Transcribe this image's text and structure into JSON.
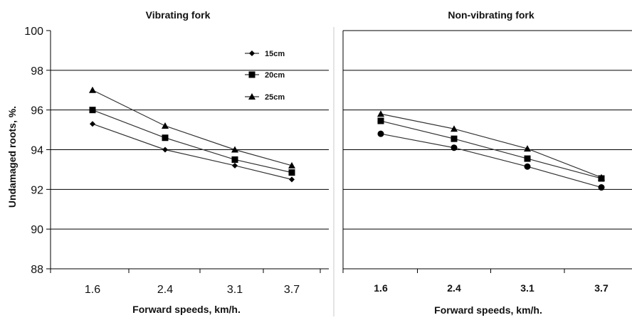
{
  "chart_data": [
    {
      "type": "line",
      "title": "Vibrating fork",
      "xlabel": "Forward speeds, km/h.",
      "ylabel": "Undamaged roots, %.",
      "categories": [
        "1.6",
        "2.4",
        "3.1",
        "3.7"
      ],
      "ylim": [
        88,
        100
      ],
      "yticks": [
        88,
        90,
        92,
        94,
        96,
        98,
        100
      ],
      "grid": true,
      "legend": "top-right",
      "series": [
        {
          "name": "15cm",
          "marker": "diamond",
          "values": [
            95.3,
            94.0,
            93.2,
            92.5
          ]
        },
        {
          "name": "20cm",
          "marker": "square",
          "values": [
            96.0,
            94.6,
            93.5,
            92.85
          ]
        },
        {
          "name": "25cm",
          "marker": "triangle",
          "values": [
            97.0,
            95.2,
            94.0,
            93.2
          ]
        }
      ]
    },
    {
      "type": "line",
      "title": "Non-vibrating fork",
      "xlabel": "Forward speeds, km/h.",
      "ylabel": "",
      "categories": [
        "1.6",
        "2.4",
        "3.1",
        "3.7"
      ],
      "ylim": [
        88,
        100
      ],
      "grid": true,
      "series": [
        {
          "marker": "circle",
          "values": [
            94.8,
            94.1,
            93.15,
            92.1
          ]
        },
        {
          "marker": "square",
          "values": [
            95.45,
            94.55,
            93.55,
            92.55
          ]
        },
        {
          "marker": "triangle",
          "values": [
            95.8,
            95.05,
            94.05,
            92.6
          ]
        }
      ]
    }
  ],
  "colors": {
    "line": "#333333",
    "marker": "#000000",
    "grid": "#000000"
  }
}
